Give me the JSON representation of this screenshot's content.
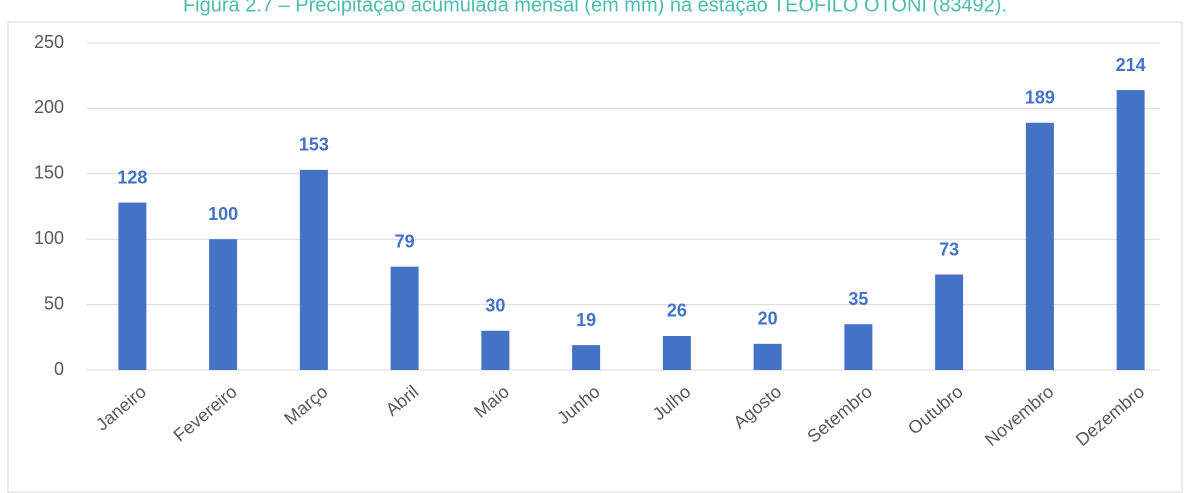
{
  "chart_data": {
    "type": "bar",
    "title": "Figura 2.7 – Precipitação acumulada mensal (em mm) na estação TEÓFILO OTONI (83492).",
    "categories": [
      "Janeiro",
      "Fevereiro",
      "Março",
      "Abril",
      "Maio",
      "Junho",
      "Julho",
      "Agosto",
      "Setembro",
      "Outubro",
      "Novembro",
      "Dezembro"
    ],
    "values": [
      128,
      100,
      153,
      79,
      30,
      19,
      26,
      20,
      35,
      73,
      189,
      214
    ],
    "color": "#4472c4",
    "ylim": [
      0,
      250
    ],
    "yticks": [
      0,
      50,
      100,
      150,
      200,
      250
    ],
    "grid": true
  }
}
